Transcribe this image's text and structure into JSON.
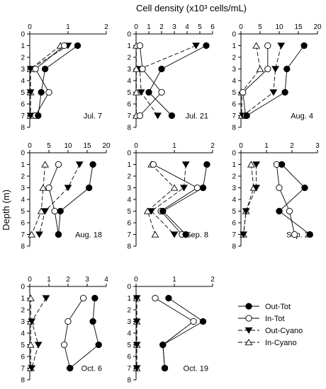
{
  "figure": {
    "title": "Cell density (x10³ cells/mL)",
    "ylabel": "Depth (m)"
  },
  "legend": [
    {
      "name": "Out-Tot"
    },
    {
      "name": "In-Tot"
    },
    {
      "name": "Out-Cyano"
    },
    {
      "name": "In-Cyano"
    }
  ],
  "chart_data": [
    {
      "type": "line",
      "date": "Jul. 7",
      "xlim": [
        0,
        2
      ],
      "xticks": [
        "0",
        "1",
        "2"
      ],
      "ylim": [
        0,
        8
      ],
      "yticks": [
        "0",
        "1",
        "2",
        "3",
        "4",
        "5",
        "6",
        "7",
        "8"
      ],
      "series": [
        {
          "name": "Out-Tot",
          "x": [
            1.25,
            0.4,
            0.3,
            0.22
          ],
          "y": [
            1,
            3,
            5,
            7
          ]
        },
        {
          "name": "In-Tot",
          "x": [
            0.9,
            0.15,
            0.5,
            0.15
          ],
          "y": [
            1,
            3,
            5,
            7
          ]
        },
        {
          "name": "Out-Cyano",
          "x": [
            1.0,
            0.02,
            0.02,
            0.02
          ],
          "y": [
            1,
            3,
            5,
            7
          ]
        },
        {
          "name": "In-Cyano",
          "x": [
            0.8,
            0.02,
            0.02,
            0.02
          ],
          "y": [
            1,
            3,
            5,
            7
          ]
        }
      ]
    },
    {
      "type": "line",
      "date": "Jul. 21",
      "xlim": [
        0,
        6
      ],
      "xticks": [
        "0",
        "1",
        "2",
        "3",
        "4",
        "5",
        "6"
      ],
      "ylim": [
        0,
        8
      ],
      "yticks": [
        "0",
        "1",
        "2",
        "3",
        "4",
        "5",
        "6",
        "7",
        "8"
      ],
      "series": [
        {
          "name": "Out-Tot",
          "x": [
            5.5,
            2.0,
            1.0,
            2.8
          ],
          "y": [
            1,
            3,
            5,
            7
          ]
        },
        {
          "name": "In-Tot",
          "x": [
            0.3,
            0.5,
            2.0,
            0.3
          ],
          "y": [
            1,
            3,
            5,
            7
          ]
        },
        {
          "name": "Out-Cyano",
          "x": [
            4.7,
            0.3,
            0.4,
            1.7
          ],
          "y": [
            1,
            3,
            5,
            7
          ]
        },
        {
          "name": "In-Cyano",
          "x": [
            0.02,
            0.02,
            0.02,
            0.02
          ],
          "y": [
            1,
            3,
            5,
            7
          ]
        }
      ]
    },
    {
      "type": "line",
      "date": "Aug. 4",
      "xlim": [
        0,
        20
      ],
      "xticks": [
        "0",
        "5",
        "10",
        "15",
        "20"
      ],
      "ylim": [
        0,
        8
      ],
      "yticks": [
        "0",
        "1",
        "2",
        "3",
        "4",
        "5",
        "6",
        "7",
        "8"
      ],
      "series": [
        {
          "name": "Out-Tot",
          "x": [
            16.5,
            12.0,
            11.5,
            1.5
          ],
          "y": [
            1,
            3,
            5,
            7
          ]
        },
        {
          "name": "In-Tot",
          "x": [
            7.0,
            7.0,
            0.5,
            1.2
          ],
          "y": [
            1,
            3,
            5,
            7
          ]
        },
        {
          "name": "Out-Cyano",
          "x": [
            10.5,
            9.0,
            8.5,
            0.5
          ],
          "y": [
            1,
            3,
            5,
            7
          ]
        },
        {
          "name": "In-Cyano",
          "x": [
            4.0,
            5.0,
            0.2,
            0.2
          ],
          "y": [
            1,
            3,
            5,
            7
          ]
        }
      ]
    },
    {
      "type": "line",
      "date": "Aug. 18",
      "xlim": [
        0,
        20
      ],
      "xticks": [
        "0",
        "5",
        "10",
        "15",
        "20"
      ],
      "ylim": [
        0,
        8
      ],
      "yticks": [
        "0",
        "1",
        "2",
        "3",
        "4",
        "5",
        "6",
        "7",
        "8"
      ],
      "series": [
        {
          "name": "Out-Tot",
          "x": [
            16.5,
            15.5,
            8.0,
            7.5
          ],
          "y": [
            1,
            3,
            5,
            7
          ]
        },
        {
          "name": "In-Tot",
          "x": [
            7.5,
            5.0,
            6.5,
            7.5
          ],
          "y": [
            1,
            3,
            5,
            7
          ]
        },
        {
          "name": "Out-Cyano",
          "x": [
            13.0,
            10.0,
            4.0,
            2.5
          ],
          "y": [
            1,
            3,
            5,
            7
          ]
        },
        {
          "name": "In-Cyano",
          "x": [
            4.0,
            3.5,
            3.0,
            0.5
          ],
          "y": [
            1,
            3,
            5,
            7
          ]
        }
      ]
    },
    {
      "type": "line",
      "date": "Sep. 8",
      "xlim": [
        0,
        2
      ],
      "xticks": [
        "0",
        "1",
        "2"
      ],
      "ylim": [
        0,
        8
      ],
      "yticks": [
        "0",
        "1",
        "2",
        "3",
        "4",
        "5",
        "6",
        "7",
        "8"
      ],
      "series": [
        {
          "name": "Out-Tot",
          "x": [
            1.85,
            1.75,
            0.7,
            1.3
          ],
          "y": [
            1,
            3,
            5,
            7
          ]
        },
        {
          "name": "In-Tot",
          "x": [
            0.45,
            1.6,
            0.65,
            1.2
          ],
          "y": [
            1,
            3,
            5,
            7
          ]
        },
        {
          "name": "Out-Cyano",
          "x": [
            1.3,
            1.25,
            0.4,
            1.0
          ],
          "y": [
            1,
            3,
            5,
            7
          ]
        },
        {
          "name": "In-Cyano",
          "x": [
            0.4,
            1.0,
            0.3,
            0.5
          ],
          "y": [
            1,
            3,
            5,
            7
          ]
        }
      ]
    },
    {
      "type": "line",
      "date": "Sep. 23",
      "xlim": [
        0,
        3
      ],
      "xticks": [
        "0",
        "1",
        "2",
        "3"
      ],
      "ylim": [
        0,
        8
      ],
      "yticks": [
        "0",
        "1",
        "2",
        "3",
        "4",
        "5",
        "6",
        "7",
        "8"
      ],
      "series": [
        {
          "name": "Out-Tot",
          "x": [
            1.6,
            2.5,
            1.5,
            2.7
          ],
          "y": [
            1,
            3,
            5,
            7
          ]
        },
        {
          "name": "In-Tot",
          "x": [
            1.4,
            1.5,
            1.9,
            2.1
          ],
          "y": [
            1,
            3,
            5,
            7
          ]
        },
        {
          "name": "Out-Cyano",
          "x": [
            0.6,
            0.6,
            0.2,
            0.1
          ],
          "y": [
            1,
            3,
            5,
            7
          ]
        },
        {
          "name": "In-Cyano",
          "x": [
            0.4,
            0.5,
            0.2,
            0.1
          ],
          "y": [
            1,
            3,
            5,
            7
          ]
        }
      ]
    },
    {
      "type": "line",
      "date": "Oct. 6",
      "xlim": [
        0,
        4
      ],
      "xticks": [
        "0",
        "1",
        "2",
        "3",
        "4"
      ],
      "ylim": [
        0,
        8
      ],
      "yticks": [
        "0",
        "1",
        "2",
        "3",
        "4",
        "5",
        "6",
        "7",
        "8"
      ],
      "series": [
        {
          "name": "Out-Tot",
          "x": [
            3.4,
            3.3,
            3.6,
            2.1
          ],
          "y": [
            1,
            3,
            5,
            7
          ]
        },
        {
          "name": "In-Tot",
          "x": [
            2.8,
            2.0,
            1.8,
            2.1
          ],
          "y": [
            1,
            3,
            5,
            7
          ]
        },
        {
          "name": "Out-Cyano",
          "x": [
            0.85,
            0.1,
            0.45,
            0.1
          ],
          "y": [
            1,
            3,
            5,
            7
          ]
        },
        {
          "name": "In-Cyano",
          "x": [
            0.05,
            0.05,
            0.05,
            0.05
          ],
          "y": [
            1,
            3,
            5,
            7
          ]
        }
      ]
    },
    {
      "type": "line",
      "date": "Oct. 19",
      "xlim": [
        0,
        2
      ],
      "xticks": [
        "0",
        "1",
        "2"
      ],
      "ylim": [
        0,
        8
      ],
      "yticks": [
        "0",
        "1",
        "2",
        "3",
        "4",
        "5",
        "6",
        "7",
        "8"
      ],
      "series": [
        {
          "name": "Out-Tot",
          "x": [
            0.85,
            1.75,
            0.7,
            0.75
          ],
          "y": [
            1,
            3,
            5,
            7
          ]
        },
        {
          "name": "In-Tot",
          "x": [
            0.5,
            1.5,
            0.7,
            0.75
          ],
          "y": [
            1,
            3,
            5,
            7
          ]
        },
        {
          "name": "Out-Cyano",
          "x": [
            0.02,
            0.02,
            0.02,
            0.02
          ],
          "y": [
            1,
            3,
            5,
            7
          ]
        },
        {
          "name": "In-Cyano",
          "x": [
            0.02,
            0.02,
            0.02,
            0.02
          ],
          "y": [
            1,
            3,
            5,
            7
          ]
        }
      ]
    }
  ]
}
